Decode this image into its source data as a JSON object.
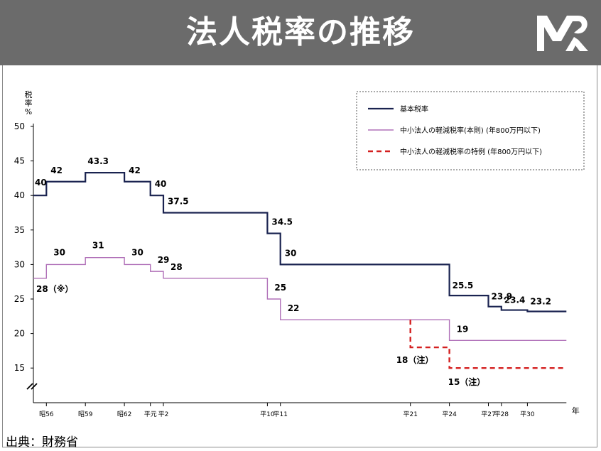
{
  "header": {
    "title": "法人税率の推移",
    "bg_color": "#6b6b6b",
    "logo_icon": "government-logo-icon"
  },
  "source": "出典：財務省",
  "chart_data": {
    "type": "line",
    "step": true,
    "ylabel": "税\n率\n%",
    "xlabel": "年",
    "ylim": [
      12,
      50
    ],
    "yticks": [
      15,
      20,
      25,
      30,
      35,
      40,
      45,
      50
    ],
    "axis_break": true,
    "grid": false,
    "legend_placement": "top-right",
    "xticks": [
      {
        "label": "昭56",
        "t": 1
      },
      {
        "label": "昭59",
        "t": 4
      },
      {
        "label": "昭62",
        "t": 7
      },
      {
        "label": "平元",
        "t": 9
      },
      {
        "label": "平2",
        "t": 10
      },
      {
        "label": "平10",
        "t": 18
      },
      {
        "label": "平11",
        "t": 19
      },
      {
        "label": "平21",
        "t": 29
      },
      {
        "label": "平24",
        "t": 32
      },
      {
        "label": "平27",
        "t": 35
      },
      {
        "label": "平28",
        "t": 36
      },
      {
        "label": "平30",
        "t": 38
      }
    ],
    "x_end": 41,
    "series": [
      {
        "name": "基本税率",
        "color": "#1a2350",
        "style": "solid",
        "points": [
          [
            0,
            40
          ],
          [
            1,
            42
          ],
          [
            4,
            43.3
          ],
          [
            7,
            42
          ],
          [
            9,
            40
          ],
          [
            10,
            37.5
          ],
          [
            18,
            34.5
          ],
          [
            19,
            30
          ],
          [
            32,
            25.5
          ],
          [
            35,
            23.9
          ],
          [
            36,
            23.4
          ],
          [
            38,
            23.2
          ]
        ],
        "labels": [
          {
            "text": "40",
            "t": 0,
            "y": 40
          },
          {
            "text": "42",
            "t": 1,
            "y": 42
          },
          {
            "text": "43.3",
            "t": 4,
            "y": 43.3
          },
          {
            "text": "42",
            "t": 7,
            "y": 42
          },
          {
            "text": "40",
            "t": 9,
            "y": 40
          },
          {
            "text": "37.5",
            "t": 10,
            "y": 37.5
          },
          {
            "text": "34.5",
            "t": 18,
            "y": 34.5
          },
          {
            "text": "30",
            "t": 19,
            "y": 30
          },
          {
            "text": "25.5",
            "t": 32,
            "y": 25.5
          },
          {
            "text": "23.9",
            "t": 35,
            "y": 23.9
          },
          {
            "text": "23.4",
            "t": 36,
            "y": 23.4
          },
          {
            "text": "23.2",
            "t": 38,
            "y": 23.2
          }
        ]
      },
      {
        "name": "中小法人の軽減税率(本則) (年800万円以下)",
        "color": "#b070b8",
        "style": "solid",
        "points": [
          [
            0,
            28
          ],
          [
            1,
            30
          ],
          [
            4,
            31
          ],
          [
            7,
            30
          ],
          [
            9,
            29
          ],
          [
            10,
            28
          ],
          [
            18,
            25
          ],
          [
            19,
            22
          ],
          [
            32,
            19
          ]
        ],
        "labels": [
          {
            "text": "28（※）",
            "t": 0,
            "y": 28
          },
          {
            "text": "30",
            "t": 1,
            "y": 30
          },
          {
            "text": "31",
            "t": 4,
            "y": 31
          },
          {
            "text": "30",
            "t": 7,
            "y": 30
          },
          {
            "text": "29",
            "t": 9,
            "y": 29
          },
          {
            "text": "28",
            "t": 10,
            "y": 28
          },
          {
            "text": "25",
            "t": 18,
            "y": 25
          },
          {
            "text": "22",
            "t": 19,
            "y": 22
          },
          {
            "text": "19",
            "t": 32,
            "y": 19
          }
        ]
      },
      {
        "name": "中小法人の軽減税率の特例 (年800万円以下)",
        "color": "#d42020",
        "style": "dashed",
        "points": [
          [
            29,
            22
          ],
          [
            29,
            18
          ],
          [
            32,
            15
          ]
        ],
        "labels": [
          {
            "text": "18（注）",
            "t": 29,
            "y": 18
          },
          {
            "text": "15（注）",
            "t": 32,
            "y": 15
          }
        ]
      }
    ]
  }
}
